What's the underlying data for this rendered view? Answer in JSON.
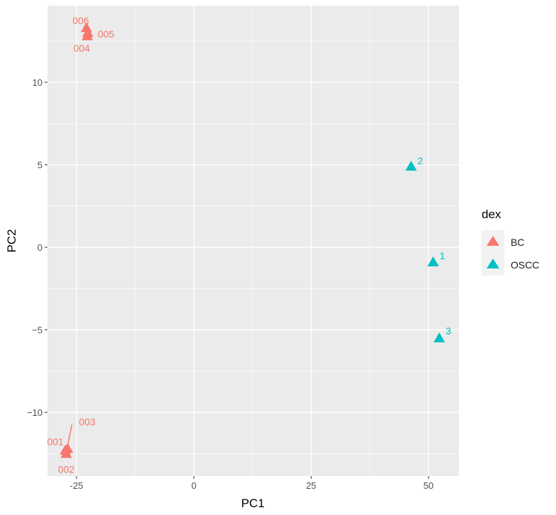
{
  "chart_data": {
    "type": "scatter",
    "title": "",
    "xlabel": "PC1",
    "ylabel": "PC2",
    "xlim": [
      -31.2,
      56.5
    ],
    "ylim": [
      -13.86,
      14.64
    ],
    "xticks": [
      -25,
      0,
      25,
      50
    ],
    "xtick_labels": [
      "-25",
      "0",
      "25",
      "50"
    ],
    "yticks": [
      -10,
      -5,
      0,
      5,
      10
    ],
    "ytick_labels": [
      "−10",
      "−5",
      "0",
      "5",
      "10"
    ],
    "grid": true,
    "legend": {
      "title": "dex",
      "placement": "right",
      "entries": [
        "BC",
        "OSCC"
      ]
    },
    "colors": {
      "BC": "#F8766D",
      "OSCC": "#00BFC4"
    },
    "points": [
      {
        "label": "006",
        "group": "BC",
        "x": -22.9,
        "y": 13.3
      },
      {
        "label": "005",
        "group": "BC",
        "x": -22.6,
        "y": 13.0
      },
      {
        "label": "004",
        "group": "BC",
        "x": -22.7,
        "y": 12.8
      },
      {
        "label": "001",
        "group": "BC",
        "x": -27.4,
        "y": -12.3
      },
      {
        "label": "002",
        "group": "BC",
        "x": -27.2,
        "y": -12.5
      },
      {
        "label": "003",
        "group": "BC",
        "x": -26.9,
        "y": -12.2
      },
      {
        "label": "2",
        "group": "OSCC",
        "x": 46.3,
        "y": 4.9
      },
      {
        "label": "1",
        "group": "OSCC",
        "x": 51.0,
        "y": -0.9
      },
      {
        "label": "3",
        "group": "OSCC",
        "x": 52.3,
        "y": -5.5
      }
    ]
  }
}
